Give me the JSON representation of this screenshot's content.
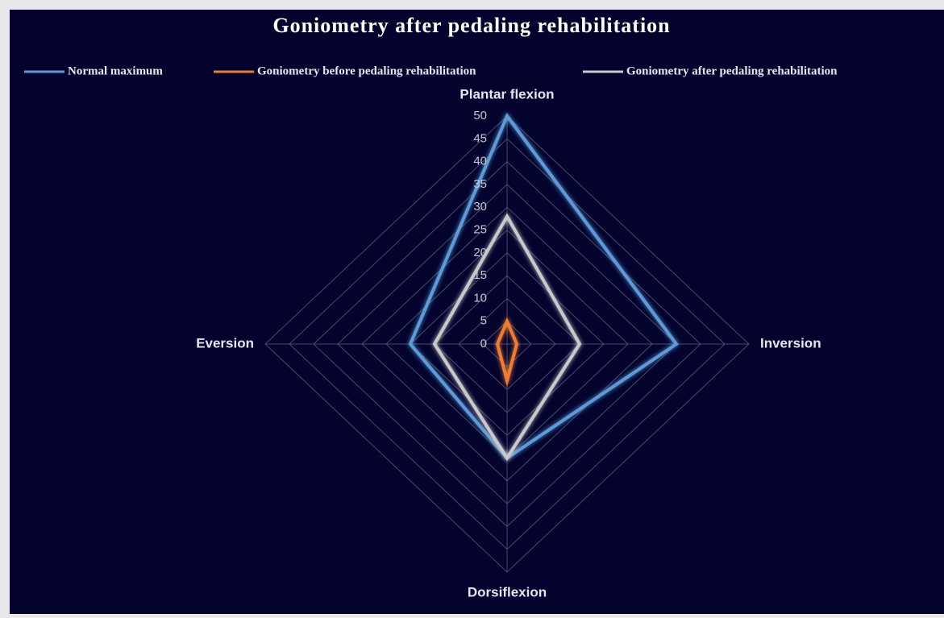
{
  "chart_data": {
    "type": "radar",
    "title": "Goniometry after pedaling rehabilitation",
    "categories": [
      "Plantar flexion",
      "Inversion",
      "Dorsiflexion",
      "Eversion"
    ],
    "series": [
      {
        "name": "Normal maximum",
        "color": "#5b9bd5",
        "values": [
          50,
          35,
          25,
          20
        ]
      },
      {
        "name": "Goniometry before pedaling rehabilitation",
        "color": "#ed7d31",
        "values": [
          5,
          2,
          8,
          2
        ]
      },
      {
        "name": "Goniometry after pedaling rehabilitation",
        "color": "#c9c9c9",
        "values": [
          28,
          15,
          25,
          15
        ]
      }
    ],
    "ylim": [
      0,
      50
    ],
    "yticks": [
      0,
      5,
      10,
      15,
      20,
      25,
      30,
      35,
      40,
      45,
      50
    ],
    "grid": true,
    "legend": "top"
  }
}
